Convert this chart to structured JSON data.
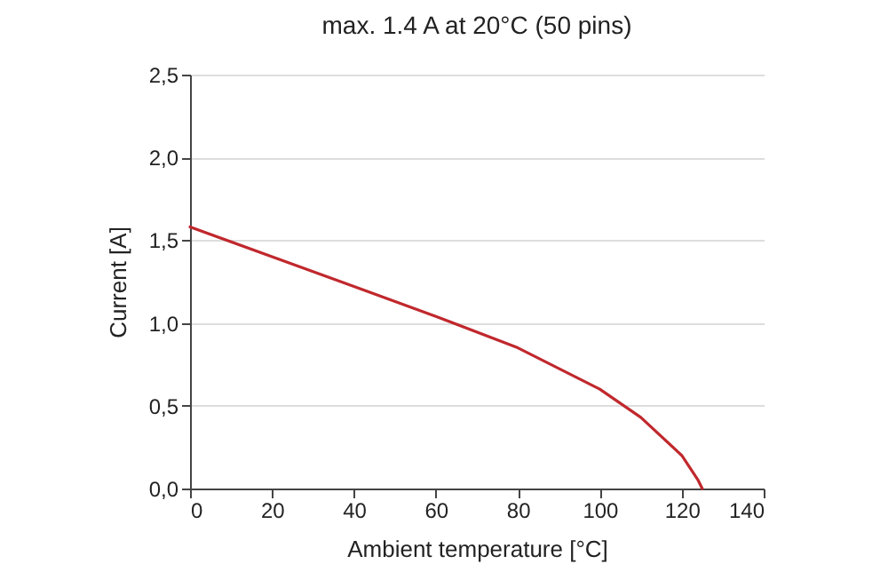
{
  "chart_data": {
    "type": "line",
    "title": "max. 1.4 A at 20°C (50 pins)",
    "xlabel": "Ambient temperature [°C]",
    "ylabel": "Current [A]",
    "x": [
      0,
      20,
      40,
      60,
      80,
      100,
      110,
      120,
      124,
      125
    ],
    "series": [
      {
        "color": "#c0282d",
        "values": [
          1.58,
          1.4,
          1.22,
          1.04,
          0.85,
          0.6,
          0.43,
          0.2,
          0.05,
          0
        ]
      }
    ],
    "xlim": [
      0,
      140
    ],
    "xticks": [
      0,
      20,
      40,
      60,
      80,
      100,
      120,
      140
    ],
    "ylim": [
      0,
      2.5
    ],
    "yticks": [
      {
        "value": 0,
        "label": "0,0"
      },
      {
        "value": 0.5,
        "label": "0,5"
      },
      {
        "value": 1,
        "label": "1,0"
      },
      {
        "value": 1.5,
        "label": "1,5"
      },
      {
        "value": 2,
        "label": "2,0"
      },
      {
        "value": 2.5,
        "label": "2,5"
      }
    ],
    "grid": "y",
    "marker": "none",
    "line_style": "solid"
  }
}
